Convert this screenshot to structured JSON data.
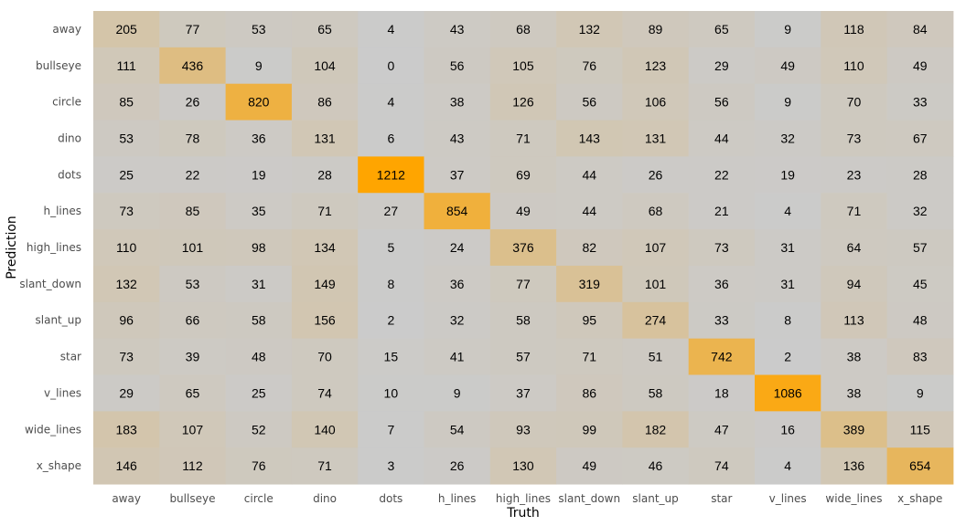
{
  "chart_data": {
    "type": "heatmap",
    "xlabel": "Truth",
    "ylabel": "Prediction",
    "x_categories": [
      "away",
      "bullseye",
      "circle",
      "dino",
      "dots",
      "h_lines",
      "high_lines",
      "slant_down",
      "slant_up",
      "star",
      "v_lines",
      "wide_lines",
      "x_shape"
    ],
    "y_categories": [
      "away",
      "bullseye",
      "circle",
      "dino",
      "dots",
      "h_lines",
      "high_lines",
      "slant_down",
      "slant_up",
      "star",
      "v_lines",
      "wide_lines",
      "x_shape"
    ],
    "values": [
      [
        205,
        77,
        53,
        65,
        4,
        43,
        68,
        132,
        89,
        65,
        9,
        118,
        84
      ],
      [
        111,
        436,
        9,
        104,
        0,
        56,
        105,
        76,
        123,
        29,
        49,
        110,
        49
      ],
      [
        85,
        26,
        820,
        86,
        4,
        38,
        126,
        56,
        106,
        56,
        9,
        70,
        33
      ],
      [
        53,
        78,
        36,
        131,
        6,
        43,
        71,
        143,
        131,
        44,
        32,
        73,
        67
      ],
      [
        25,
        22,
        19,
        28,
        1212,
        37,
        69,
        44,
        26,
        22,
        19,
        23,
        28
      ],
      [
        73,
        85,
        35,
        71,
        27,
        854,
        49,
        44,
        68,
        21,
        4,
        71,
        32
      ],
      [
        110,
        101,
        98,
        134,
        5,
        24,
        376,
        82,
        107,
        73,
        31,
        64,
        57
      ],
      [
        132,
        53,
        31,
        149,
        8,
        36,
        77,
        319,
        101,
        36,
        31,
        94,
        45
      ],
      [
        96,
        66,
        58,
        156,
        2,
        32,
        58,
        95,
        274,
        33,
        8,
        113,
        48
      ],
      [
        73,
        39,
        48,
        70,
        15,
        41,
        57,
        71,
        51,
        742,
        2,
        38,
        83
      ],
      [
        29,
        65,
        25,
        74,
        10,
        9,
        37,
        86,
        58,
        18,
        1086,
        38,
        9
      ],
      [
        183,
        107,
        52,
        140,
        7,
        54,
        93,
        99,
        182,
        47,
        16,
        389,
        115
      ],
      [
        146,
        112,
        76,
        71,
        3,
        26,
        130,
        49,
        46,
        74,
        4,
        136,
        654
      ]
    ],
    "color_low": "#cbcbcb",
    "color_high": "#ffa500",
    "value_range": [
      0,
      1212
    ],
    "grid": false,
    "legend": "none"
  }
}
